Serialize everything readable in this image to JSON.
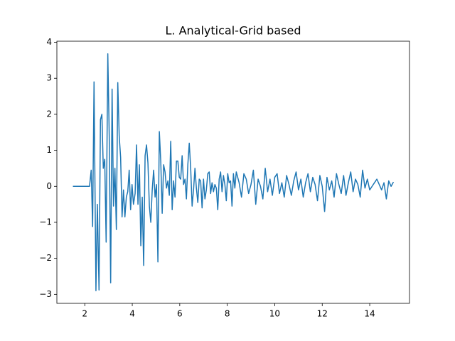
{
  "chart_data": {
    "type": "line",
    "title": "L. Analytical-Grid based",
    "x": [
      1.5,
      2.2,
      2.27,
      2.33,
      2.39,
      2.47,
      2.53,
      2.6,
      2.66,
      2.72,
      2.78,
      2.84,
      2.9,
      2.97,
      3.03,
      3.09,
      3.15,
      3.21,
      3.27,
      3.33,
      3.39,
      3.45,
      3.51,
      3.57,
      3.63,
      3.69,
      3.75,
      3.81,
      3.87,
      3.93,
      3.99,
      4.05,
      4.12,
      4.18,
      4.24,
      4.3,
      4.36,
      4.42,
      4.48,
      4.54,
      4.6,
      4.66,
      4.72,
      4.78,
      4.84,
      4.9,
      4.96,
      5.02,
      5.08,
      5.14,
      5.2,
      5.26,
      5.32,
      5.38,
      5.44,
      5.5,
      5.56,
      5.62,
      5.68,
      5.74,
      5.8,
      5.86,
      5.92,
      5.98,
      6.04,
      6.1,
      6.16,
      6.22,
      6.28,
      6.34,
      6.4,
      6.46,
      6.52,
      6.58,
      6.64,
      6.7,
      6.76,
      6.82,
      6.88,
      6.94,
      7.0,
      7.06,
      7.12,
      7.18,
      7.24,
      7.3,
      7.36,
      7.42,
      7.48,
      7.54,
      7.6,
      7.66,
      7.72,
      7.78,
      7.84,
      7.9,
      7.96,
      8.02,
      8.08,
      8.14,
      8.2,
      8.26,
      8.32,
      8.38,
      8.5,
      8.6,
      8.7,
      8.8,
      8.9,
      9.0,
      9.1,
      9.2,
      9.3,
      9.4,
      9.5,
      9.6,
      9.7,
      9.8,
      9.9,
      10.0,
      10.1,
      10.2,
      10.3,
      10.4,
      10.5,
      10.6,
      10.7,
      10.8,
      10.9,
      11.0,
      11.1,
      11.2,
      11.3,
      11.4,
      11.5,
      11.6,
      11.7,
      11.8,
      11.9,
      12.0,
      12.1,
      12.2,
      12.3,
      12.4,
      12.5,
      12.6,
      12.7,
      12.8,
      12.9,
      13.0,
      13.1,
      13.2,
      13.3,
      13.4,
      13.5,
      13.6,
      13.7,
      13.8,
      13.9,
      14.0,
      14.1,
      14.2,
      14.3,
      14.4,
      14.5,
      14.6,
      14.7,
      14.8,
      14.9,
      15.0
    ],
    "series": [
      {
        "color": "#1f77b4",
        "values": [
          0,
          0,
          0.45,
          -1.12,
          2.9,
          -2.9,
          -0.5,
          -2.88,
          1.85,
          2.0,
          0.5,
          0.75,
          -1.55,
          3.68,
          1.4,
          -2.68,
          2.7,
          -0.55,
          0.5,
          -1.2,
          2.88,
          1.4,
          0.8,
          -0.85,
          -0.1,
          -0.85,
          -0.3,
          -0.15,
          0.45,
          -0.65,
          0.05,
          -0.5,
          -0.2,
          1.15,
          -0.5,
          0.6,
          -1.65,
          -0.3,
          -2.2,
          0.85,
          1.15,
          0.65,
          -0.55,
          -1.0,
          -0.1,
          0.45,
          -0.3,
          0.05,
          -2.1,
          1.52,
          0.7,
          -0.75,
          0.6,
          0.4,
          -0.05,
          0.15,
          -0.25,
          1.25,
          -0.65,
          0.15,
          -0.3,
          0.7,
          0.7,
          0.25,
          0.2,
          0.85,
          0.05,
          0.2,
          -0.35,
          0.6,
          1.2,
          0.5,
          -0.55,
          -0.1,
          0.5,
          -0.05,
          -0.45,
          0.2,
          0.15,
          -0.6,
          0.2,
          -0.35,
          -0.1,
          0.35,
          0.4,
          -0.2,
          0.1,
          -0.15,
          0.05,
          -0.05,
          -0.65,
          0.2,
          0.4,
          -0.15,
          0.3,
          0.05,
          -0.4,
          0.35,
          0.1,
          0.15,
          -0.55,
          0.35,
          -0.05,
          0.4,
          0.1,
          -0.3,
          0.35,
          0.2,
          -0.2,
          0.05,
          0.45,
          -0.5,
          0.2,
          0.0,
          -0.35,
          0.5,
          -0.15,
          0.2,
          -0.25,
          0.25,
          0.35,
          -0.2,
          0.1,
          -0.3,
          0.3,
          0.05,
          -0.25,
          0.15,
          0.4,
          -0.1,
          0.2,
          -0.3,
          0.1,
          0.35,
          -0.15,
          0.25,
          0.05,
          -0.4,
          0.3,
          0.0,
          -0.7,
          0.25,
          -0.1,
          0.15,
          -0.3,
          0.35,
          0.05,
          -0.2,
          0.3,
          -0.25,
          0.1,
          0.4,
          -0.15,
          0.2,
          0.05,
          -0.3,
          0.45,
          -0.05,
          0.2,
          -0.1,
          0.0,
          0.1,
          0.2,
          0.05,
          -0.1,
          0.1,
          -0.35,
          0.15,
          0.0,
          0.12
        ]
      }
    ],
    "xlim": [
      0.825,
      15.675
    ],
    "xticks": [
      2,
      4,
      6,
      8,
      10,
      12,
      14
    ],
    "ylim": [
      -3.25,
      4.03
    ],
    "yticks": [
      {
        "value": -3,
        "label": "−3"
      },
      {
        "value": -2,
        "label": "−2"
      },
      {
        "value": -1,
        "label": "−1"
      },
      0,
      1,
      2,
      3,
      4
    ]
  }
}
